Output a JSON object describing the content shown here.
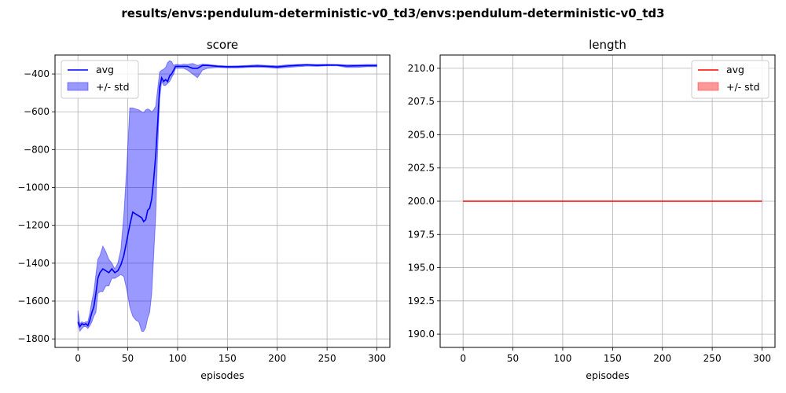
{
  "figure": {
    "title": "results/envs:pendulum-deterministic-v0_td3/envs:pendulum-deterministic-v0_td3"
  },
  "chart_data": [
    {
      "type": "line",
      "title": "score",
      "xlabel": "episodes",
      "ylabel": "",
      "xlim": [
        -23,
        313
      ],
      "ylim": [
        -1845,
        -300
      ],
      "xticks": [
        0,
        50,
        100,
        150,
        200,
        250,
        300
      ],
      "yticks": [
        -1800,
        -1600,
        -1400,
        -1200,
        -1000,
        -800,
        -600,
        -400
      ],
      "grid": true,
      "legend": {
        "position": "top-left",
        "entries": [
          "avg",
          "+/- std"
        ]
      },
      "colors": {
        "line": "#0000ff",
        "band": "#0000ff"
      },
      "series": [
        {
          "name": "avg",
          "x": [
            0,
            2,
            4,
            6,
            8,
            10,
            12,
            14,
            16,
            18,
            20,
            22,
            25,
            28,
            31,
            34,
            37,
            40,
            43,
            46,
            49,
            52,
            55,
            58,
            61,
            64,
            66,
            68,
            70,
            72,
            74,
            76,
            78,
            80,
            82,
            84,
            86,
            88,
            90,
            92,
            94,
            96,
            98,
            100,
            103,
            106,
            110,
            115,
            120,
            125,
            130,
            140,
            150,
            160,
            170,
            180,
            190,
            200,
            210,
            220,
            230,
            240,
            250,
            260,
            270,
            280,
            290,
            300
          ],
          "y": [
            -1710,
            -1735,
            -1720,
            -1725,
            -1720,
            -1730,
            -1700,
            -1660,
            -1630,
            -1560,
            -1480,
            -1450,
            -1430,
            -1440,
            -1450,
            -1430,
            -1450,
            -1440,
            -1410,
            -1360,
            -1280,
            -1200,
            -1130,
            -1140,
            -1150,
            -1160,
            -1180,
            -1170,
            -1120,
            -1110,
            -1060,
            -960,
            -830,
            -660,
            -470,
            -420,
            -440,
            -430,
            -440,
            -410,
            -400,
            -380,
            -360,
            -360,
            -360,
            -360,
            -360,
            -370,
            -370,
            -355,
            -355,
            -360,
            -362,
            -362,
            -360,
            -358,
            -360,
            -363,
            -358,
            -355,
            -352,
            -355,
            -353,
            -353,
            -358,
            -357,
            -356,
            -356
          ]
        },
        {
          "name": "+/- std",
          "x": [
            0,
            2,
            4,
            6,
            8,
            10,
            12,
            14,
            16,
            18,
            20,
            22,
            25,
            28,
            31,
            34,
            37,
            40,
            43,
            46,
            49,
            52,
            55,
            58,
            61,
            64,
            66,
            68,
            70,
            72,
            74,
            76,
            78,
            80,
            82,
            84,
            86,
            88,
            90,
            92,
            94,
            96,
            98,
            100,
            103,
            106,
            110,
            115,
            120,
            125,
            130,
            140,
            150,
            160,
            170,
            180,
            190,
            200,
            210,
            220,
            230,
            240,
            250,
            260,
            270,
            280,
            290,
            300
          ],
          "upper": [
            -1650,
            -1720,
            -1710,
            -1715,
            -1710,
            -1710,
            -1660,
            -1600,
            -1550,
            -1460,
            -1380,
            -1360,
            -1310,
            -1340,
            -1380,
            -1400,
            -1430,
            -1400,
            -1330,
            -1150,
            -890,
            -580,
            -580,
            -585,
            -590,
            -600,
            -605,
            -590,
            -585,
            -590,
            -600,
            -590,
            -570,
            -480,
            -390,
            -380,
            -375,
            -365,
            -340,
            -330,
            -335,
            -355,
            -350,
            -350,
            -352,
            -348,
            -350,
            -345,
            -355,
            -348,
            -350,
            -355,
            -358,
            -357,
            -355,
            -352,
            -355,
            -357,
            -352,
            -350,
            -348,
            -350,
            -349,
            -350,
            -352,
            -352,
            -350,
            -350
          ],
          "lower": [
            -1720,
            -1760,
            -1745,
            -1735,
            -1735,
            -1745,
            -1730,
            -1710,
            -1680,
            -1660,
            -1560,
            -1550,
            -1550,
            -1520,
            -1520,
            -1480,
            -1480,
            -1470,
            -1460,
            -1470,
            -1540,
            -1630,
            -1680,
            -1700,
            -1710,
            -1760,
            -1760,
            -1740,
            -1690,
            -1660,
            -1560,
            -1360,
            -1150,
            -800,
            -530,
            -440,
            -460,
            -460,
            -450,
            -440,
            -420,
            -400,
            -370,
            -370,
            -370,
            -370,
            -380,
            -400,
            -420,
            -380,
            -370,
            -365,
            -368,
            -368,
            -365,
            -364,
            -366,
            -370,
            -366,
            -362,
            -358,
            -360,
            -357,
            -357,
            -366,
            -365,
            -362,
            -362
          ]
        }
      ]
    },
    {
      "type": "line",
      "title": "length",
      "xlabel": "episodes",
      "ylabel": "",
      "xlim": [
        -23,
        313
      ],
      "ylim": [
        189,
        211
      ],
      "xticks": [
        0,
        50,
        100,
        150,
        200,
        250,
        300
      ],
      "yticks": [
        190.0,
        192.5,
        195.0,
        197.5,
        200.0,
        202.5,
        205.0,
        207.5,
        210.0
      ],
      "ytick_labels": [
        "190.0",
        "192.5",
        "195.0",
        "197.5",
        "200.0",
        "202.5",
        "205.0",
        "207.5",
        "210.0"
      ],
      "grid": true,
      "legend": {
        "position": "top-right",
        "entries": [
          "avg",
          "+/- std"
        ]
      },
      "colors": {
        "line": "#ff0000",
        "band": "#ff0000"
      },
      "series": [
        {
          "name": "avg",
          "x": [
            0,
            300
          ],
          "y": [
            200,
            200
          ]
        },
        {
          "name": "+/- std",
          "x": [
            0,
            300
          ],
          "upper": [
            200,
            200
          ],
          "lower": [
            200,
            200
          ]
        }
      ]
    }
  ]
}
